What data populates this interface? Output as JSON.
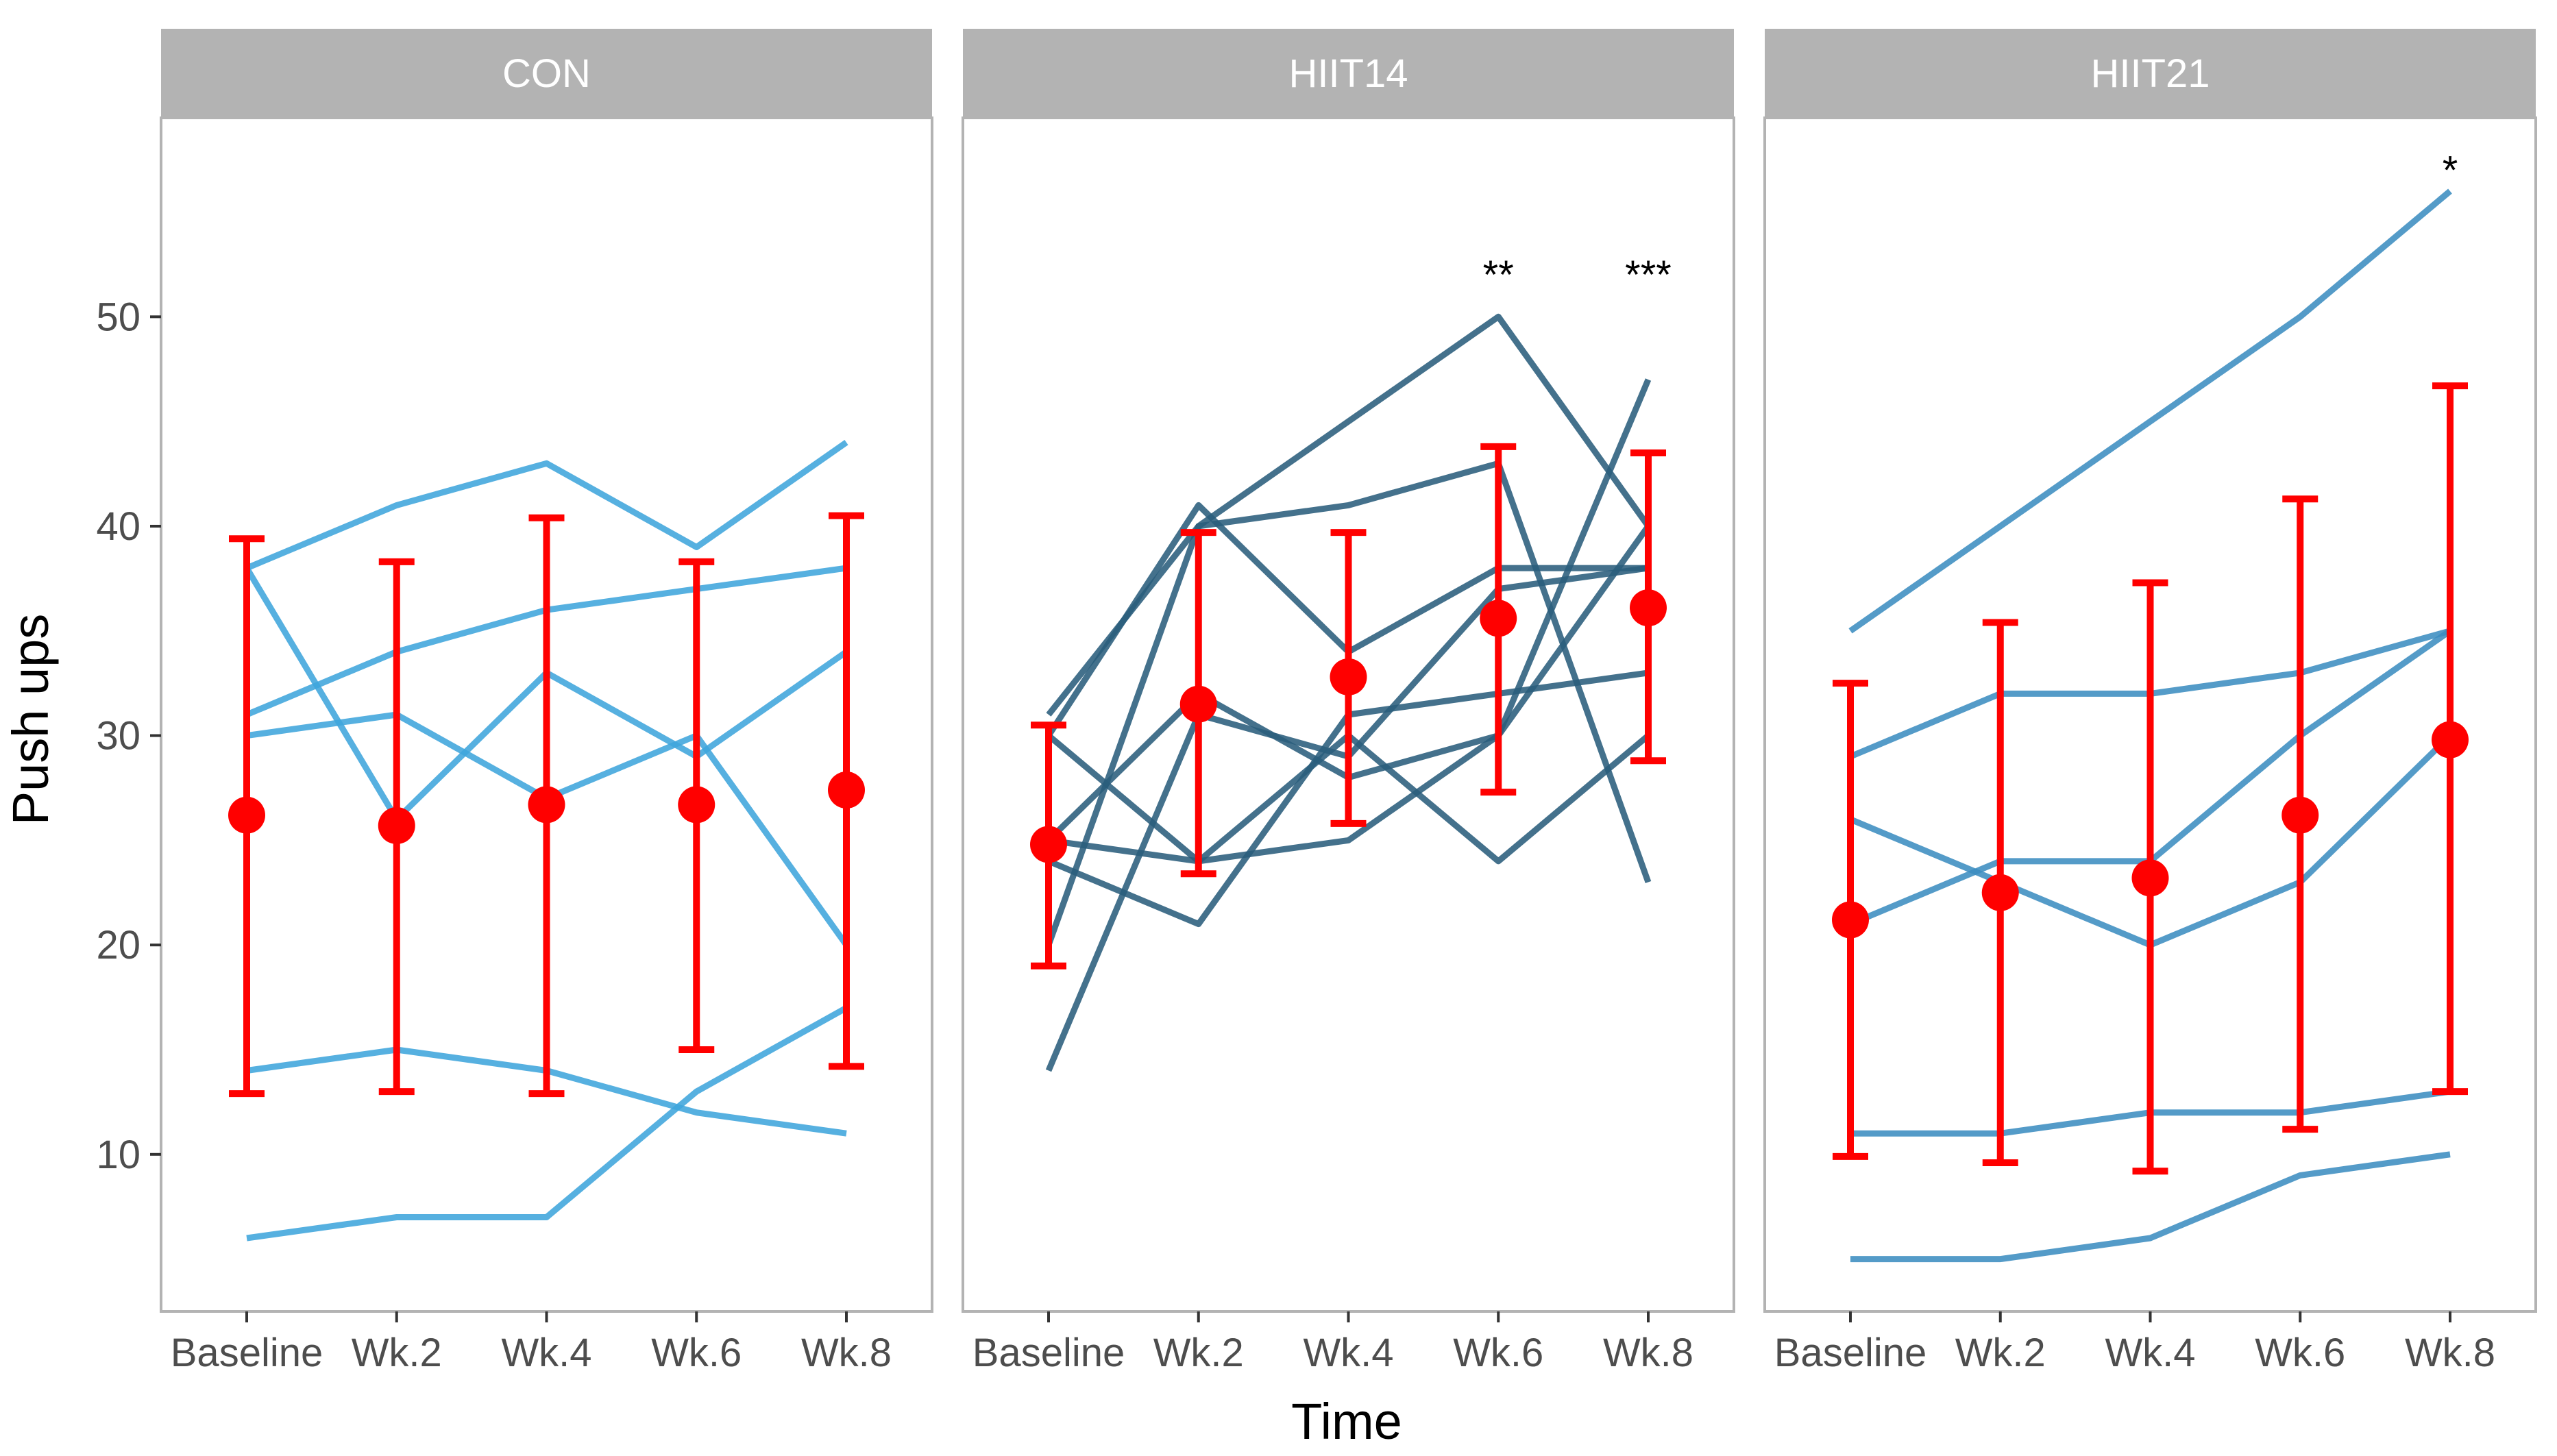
{
  "chart_data": {
    "type": "line",
    "facet_by": "group",
    "ylabel": "Push ups",
    "xlabel": "Time",
    "categories": [
      "Baseline",
      "Wk.2",
      "Wk.4",
      "Wk.6",
      "Wk.8"
    ],
    "ylim": [
      2.5,
      59.5
    ],
    "yticks": [
      10,
      20,
      30,
      40,
      50
    ],
    "grid": false,
    "panels": [
      {
        "name": "CON",
        "line_color": "#3fa5dc",
        "individuals": [
          [
            38,
            41,
            43,
            39,
            44
          ],
          [
            31,
            34,
            36,
            37,
            38
          ],
          [
            30,
            31,
            27,
            30,
            20
          ],
          [
            38,
            26,
            33,
            29,
            34
          ],
          [
            14,
            15,
            14,
            12,
            11
          ],
          [
            6,
            7,
            7,
            13,
            17
          ]
        ],
        "mean": [
          26.2,
          25.7,
          26.7,
          26.7,
          27.4
        ],
        "error_low": [
          12.9,
          13.0,
          12.9,
          15.0,
          14.2
        ],
        "error_high": [
          39.4,
          38.3,
          40.4,
          38.3,
          40.5
        ],
        "annotations": []
      },
      {
        "name": "HIIT14",
        "line_color": "#2a5d7c",
        "individuals": [
          [
            31,
            40,
            45,
            50,
            40
          ],
          [
            30,
            41,
            34,
            38,
            38
          ],
          [
            25,
            24,
            25,
            30,
            47
          ],
          [
            20,
            40,
            41,
            43,
            23
          ],
          [
            24,
            21,
            31,
            32,
            33
          ],
          [
            14,
            31,
            29,
            37,
            38
          ],
          [
            25,
            32,
            28,
            30,
            40
          ],
          [
            30,
            24,
            30,
            24,
            30
          ]
        ],
        "mean": [
          24.8,
          31.5,
          32.8,
          35.6,
          36.1
        ],
        "error_low": [
          19.0,
          23.4,
          25.8,
          27.3,
          28.8
        ],
        "error_high": [
          30.5,
          39.7,
          39.7,
          43.8,
          43.5
        ],
        "annotations": [
          {
            "category": "Wk.6",
            "y": 52,
            "label": "**"
          },
          {
            "category": "Wk.8",
            "y": 52,
            "label": "***"
          }
        ]
      },
      {
        "name": "HIIT21",
        "line_color": "#3c8dc0",
        "individuals": [
          [
            35,
            40,
            45,
            50,
            56
          ],
          [
            29,
            32,
            32,
            33,
            35
          ],
          [
            21,
            24,
            24,
            30,
            35
          ],
          [
            26,
            23,
            20,
            23,
            30
          ],
          [
            11,
            11,
            12,
            12,
            13
          ],
          [
            5,
            5,
            6,
            9,
            10
          ]
        ],
        "mean": [
          21.2,
          22.5,
          23.2,
          26.2,
          29.8
        ],
        "error_low": [
          9.9,
          9.6,
          9.2,
          11.2,
          13.0
        ],
        "error_high": [
          32.5,
          35.4,
          37.3,
          41.3,
          46.7
        ],
        "annotations": [
          {
            "category": "Wk.8",
            "y": 57,
            "label": "*"
          }
        ]
      }
    ],
    "mean_color": "#ff0000"
  }
}
